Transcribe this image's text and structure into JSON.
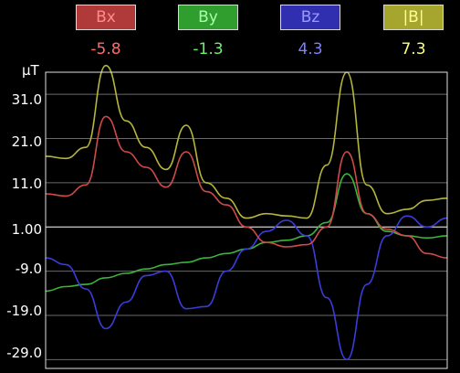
{
  "legend": [
    {
      "label": "Bx",
      "value": "-5.8",
      "box_bg": "#b03a3a",
      "label_color": "#ff8c8c",
      "value_color": "#ff6a6a"
    },
    {
      "label": "By",
      "value": "-1.3",
      "box_bg": "#2f9e2f",
      "label_color": "#a8ffa8",
      "value_color": "#6cf06c"
    },
    {
      "label": "Bz",
      "value": "4.3",
      "box_bg": "#2f2fb0",
      "label_color": "#9a9aff",
      "value_color": "#7f7fff"
    },
    {
      "label": "|B|",
      "value": "7.3",
      "box_bg": "#a6a62e",
      "label_color": "#fdfd9a",
      "value_color": "#ffff7a"
    }
  ],
  "chart": {
    "unit_label": "μT",
    "y_tick_labels": [
      "31.0",
      "21.0",
      "11.0",
      "1.00",
      "-9.0",
      "-19.0",
      "-29.0"
    ]
  },
  "chart_data": {
    "type": "line",
    "ylabel": "μT",
    "ylim": [
      -31.0,
      36.0
    ],
    "yticks": [
      31.0,
      21.0,
      11.0,
      1.0,
      -9.0,
      -19.0,
      -29.0
    ],
    "grid": true,
    "legend_placement": "top",
    "x": [
      0,
      5,
      10,
      15,
      20,
      25,
      30,
      35,
      40,
      45,
      50,
      55,
      60,
      65,
      70,
      75,
      80,
      85,
      90,
      95,
      100
    ],
    "series": [
      {
        "name": "Bx",
        "color": "#d04a4a",
        "values": [
          8.5,
          8.0,
          10.5,
          26.0,
          18.0,
          14.5,
          10.0,
          18.0,
          9.0,
          6.0,
          1.0,
          -2.5,
          -3.5,
          -3.0,
          1.0,
          18.0,
          4.0,
          0.5,
          -1.0,
          -5.0,
          -6.0
        ]
      },
      {
        "name": "By",
        "color": "#3cb43c",
        "values": [
          -13.5,
          -12.5,
          -12.0,
          -10.5,
          -9.5,
          -8.5,
          -7.5,
          -7.0,
          -6.0,
          -5.0,
          -4.0,
          -2.5,
          -2.0,
          -1.0,
          2.0,
          13.0,
          4.0,
          0.0,
          -1.0,
          -1.5,
          -1.0
        ]
      },
      {
        "name": "Bz",
        "color": "#3c3cdc",
        "values": [
          -6.0,
          -7.5,
          -13.0,
          -22.0,
          -16.0,
          -10.0,
          -9.0,
          -17.5,
          -17.0,
          -9.0,
          -4.0,
          0.0,
          2.5,
          -1.0,
          -15.0,
          -29.0,
          -12.0,
          -1.0,
          3.5,
          1.0,
          3.0
        ]
      },
      {
        "name": "|B|",
        "color": "#b6b63a",
        "values": [
          17.0,
          16.5,
          19.0,
          37.5,
          25.0,
          19.0,
          14.0,
          24.0,
          11.0,
          7.5,
          3.0,
          4.0,
          3.5,
          3.0,
          15.0,
          36.0,
          10.5,
          4.0,
          5.0,
          7.0,
          7.5
        ]
      }
    ]
  }
}
